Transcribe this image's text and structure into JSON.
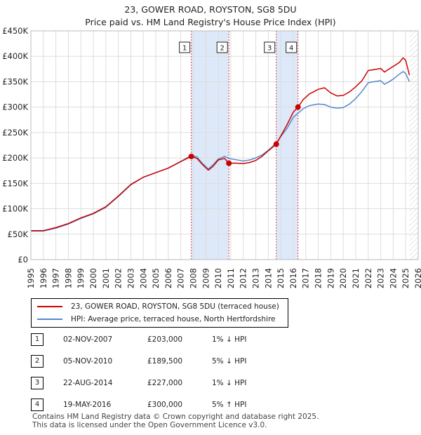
{
  "header": {
    "title": "23, GOWER ROAD, ROYSTON, SG8 5DU",
    "subtitle": "Price paid vs. HM Land Registry's House Price Index (HPI)"
  },
  "colors": {
    "property_line": "#cc0000",
    "hpi_line": "#5588cc",
    "shade": "#dde8f8",
    "marker_line": "#dd4444",
    "grid": "#dddddd"
  },
  "chart_data": {
    "type": "line",
    "title": "23, GOWER ROAD, ROYSTON, SG8 5DU",
    "subtitle": "Price paid vs. HM Land Registry's House Price Index (HPI)",
    "xlabel": "",
    "ylabel": "",
    "xlim": [
      1995,
      2026
    ],
    "ylim": [
      0,
      450000
    ],
    "y_ticks": [
      {
        "value": 0,
        "label": "£0"
      },
      {
        "value": 50000,
        "label": "£50K"
      },
      {
        "value": 100000,
        "label": "£100K"
      },
      {
        "value": 150000,
        "label": "£150K"
      },
      {
        "value": 200000,
        "label": "£200K"
      },
      {
        "value": 250000,
        "label": "£250K"
      },
      {
        "value": 300000,
        "label": "£300K"
      },
      {
        "value": 350000,
        "label": "£350K"
      },
      {
        "value": 400000,
        "label": "£400K"
      },
      {
        "value": 450000,
        "label": "£450K"
      }
    ],
    "x_ticks": [
      "1995",
      "1996",
      "1997",
      "1998",
      "1999",
      "2000",
      "2001",
      "2002",
      "2003",
      "2004",
      "2005",
      "2006",
      "2007",
      "2008",
      "2009",
      "2010",
      "2011",
      "2012",
      "2013",
      "2014",
      "2015",
      "2016",
      "2017",
      "2018",
      "2019",
      "2020",
      "2021",
      "2022",
      "2023",
      "2024",
      "2025",
      "2026"
    ],
    "grid": true,
    "shaded_ranges": [
      [
        2007.84,
        2010.85
      ],
      [
        2014.64,
        2016.38
      ]
    ],
    "data_end": 2025.3,
    "series": [
      {
        "name": "23, GOWER ROAD, ROYSTON, SG8 5DU (terraced house)",
        "color": "#cc0000",
        "x": [
          1995.0,
          1996.0,
          1997.0,
          1998.0,
          1999.0,
          2000.0,
          2001.0,
          2002.0,
          2003.0,
          2004.0,
          2005.0,
          2006.0,
          2007.0,
          2007.84,
          2008.3,
          2008.7,
          2009.2,
          2009.6,
          2010.0,
          2010.5,
          2010.85,
          2011.3,
          2012.0,
          2012.5,
          2013.0,
          2013.5,
          2014.0,
          2014.64,
          2015.0,
          2015.5,
          2016.0,
          2016.38,
          2016.8,
          2017.3,
          2018.0,
          2018.5,
          2019.0,
          2019.5,
          2020.0,
          2020.5,
          2021.0,
          2021.5,
          2022.0,
          2022.5,
          2023.0,
          2023.3,
          2023.6,
          2024.0,
          2024.5,
          2024.8,
          2025.0,
          2025.3
        ],
        "y": [
          57000,
          57000,
          63000,
          71000,
          82000,
          91000,
          104000,
          125000,
          148000,
          162000,
          171000,
          180000,
          193000,
          203000,
          199000,
          188000,
          176000,
          184000,
          196000,
          199000,
          189500,
          190000,
          189000,
          191000,
          195000,
          203000,
          214000,
          227000,
          243000,
          265000,
          290000,
          300000,
          315000,
          326000,
          335000,
          338000,
          328000,
          322000,
          323000,
          330000,
          340000,
          352000,
          372000,
          374000,
          376000,
          369000,
          374000,
          380000,
          388000,
          397000,
          392000,
          363000
        ]
      },
      {
        "name": "HPI: Average price, terraced house, North Hertfordshire",
        "color": "#5588cc",
        "x": [
          1995.0,
          1996.0,
          1997.0,
          1998.0,
          1999.0,
          2000.0,
          2001.0,
          2002.0,
          2003.0,
          2004.0,
          2005.0,
          2006.0,
          2007.0,
          2007.84,
          2008.3,
          2008.7,
          2009.2,
          2009.6,
          2010.0,
          2010.5,
          2010.85,
          2011.3,
          2012.0,
          2012.5,
          2013.0,
          2013.5,
          2014.0,
          2014.64,
          2015.0,
          2015.5,
          2016.0,
          2016.38,
          2016.8,
          2017.3,
          2018.0,
          2018.5,
          2019.0,
          2019.5,
          2020.0,
          2020.5,
          2021.0,
          2021.5,
          2022.0,
          2022.5,
          2023.0,
          2023.3,
          2023.6,
          2024.0,
          2024.5,
          2024.8,
          2025.0,
          2025.3
        ],
        "y": [
          56000,
          56000,
          62000,
          70000,
          81000,
          90000,
          103000,
          124000,
          147000,
          162000,
          171000,
          180000,
          193000,
          205000,
          202000,
          190000,
          178000,
          187000,
          198000,
          203000,
          199000,
          197000,
          194000,
          196000,
          200000,
          206000,
          215000,
          229000,
          242000,
          258000,
          280000,
          288000,
          297000,
          303000,
          306000,
          305000,
          300000,
          298000,
          299000,
          306000,
          317000,
          331000,
          348000,
          350000,
          352000,
          345000,
          349000,
          355000,
          365000,
          370000,
          366000,
          350000
        ]
      }
    ],
    "sales": [
      {
        "label": "1",
        "x": 2007.84,
        "y": 203000
      },
      {
        "label": "2",
        "x": 2010.85,
        "y": 189500
      },
      {
        "label": "3",
        "x": 2014.64,
        "y": 227000
      },
      {
        "label": "4",
        "x": 2016.38,
        "y": 300000
      }
    ]
  },
  "legend": {
    "property": "23, GOWER ROAD, ROYSTON, SG8 5DU (terraced house)",
    "hpi": "HPI: Average price, terraced house, North Hertfordshire"
  },
  "transactions": [
    {
      "num": "1",
      "date": "02-NOV-2007",
      "price": "£203,000",
      "hpi": "1% ↓ HPI"
    },
    {
      "num": "2",
      "date": "05-NOV-2010",
      "price": "£189,500",
      "hpi": "5% ↓ HPI"
    },
    {
      "num": "3",
      "date": "22-AUG-2014",
      "price": "£227,000",
      "hpi": "1% ↓ HPI"
    },
    {
      "num": "4",
      "date": "19-MAY-2016",
      "price": "£300,000",
      "hpi": "5% ↑ HPI"
    }
  ],
  "footer": {
    "line1": "Contains HM Land Registry data © Crown copyright and database right 2025.",
    "line2": "This data is licensed under the Open Government Licence v3.0."
  }
}
